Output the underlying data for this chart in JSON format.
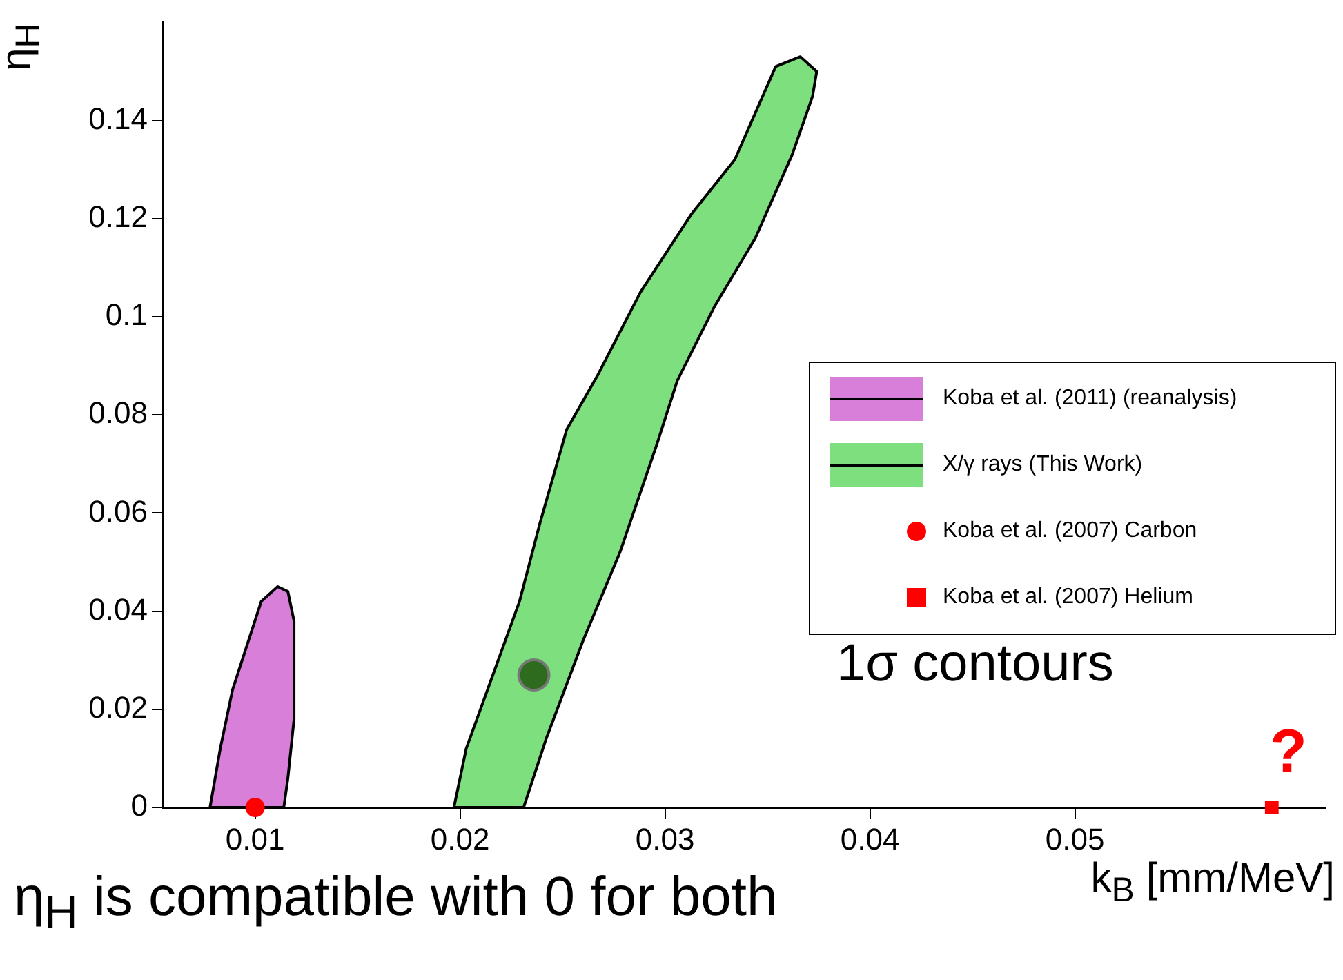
{
  "chart_data": {
    "type": "scatter",
    "xlabel": "k$_{B}$ [mm/MeV]",
    "ylabel": "η$_{H}$",
    "xlim": [
      0.0055,
      0.0622
    ],
    "ylim": [
      0,
      0.16
    ],
    "xticks": [
      0.01,
      0.02,
      0.03,
      0.04,
      0.05
    ],
    "yticks": [
      0,
      0.02,
      0.04,
      0.06,
      0.08,
      0.1,
      0.12,
      0.14
    ],
    "grid": false,
    "legend": "right",
    "annotations": [
      "1σ contours",
      "η$_{H}$ is compatible with 0 for both",
      {
        "text": "?",
        "x": 0.0596,
        "y": 0
      }
    ],
    "series": [
      {
        "name": "Koba et al. (2011) (reanalysis)",
        "type": "area",
        "color": "#d77fd9",
        "x": [
          0.0078,
          0.0083,
          0.0089,
          0.0096,
          0.0103,
          0.0111,
          0.0116,
          0.0119,
          0.0119,
          0.0116,
          0.0114,
          0.0078
        ],
        "values": [
          0,
          0.012,
          0.024,
          0.033,
          0.042,
          0.045,
          0.044,
          0.038,
          0.018,
          0.006,
          0,
          0
        ]
      },
      {
        "name": "X/γ rays (This Work)",
        "type": "area",
        "color": "#7ddf7d",
        "x": [
          0.0197,
          0.0203,
          0.0216,
          0.0229,
          0.0239,
          0.0252,
          0.0267,
          0.0288,
          0.0313,
          0.0334,
          0.0354,
          0.0366,
          0.0374,
          0.0372,
          0.0362,
          0.0344,
          0.0324,
          0.0306,
          0.0296,
          0.0278,
          0.026,
          0.0242,
          0.0231,
          0.0197
        ],
        "values": [
          0,
          0.012,
          0.027,
          0.042,
          0.058,
          0.077,
          0.088,
          0.105,
          0.121,
          0.132,
          0.151,
          0.153,
          0.15,
          0.145,
          0.133,
          0.116,
          0.102,
          0.087,
          0.074,
          0.052,
          0.034,
          0.014,
          0,
          0
        ]
      },
      {
        "type": "scatter",
        "marker": "circle",
        "color": "#2e6b1e",
        "x": [
          0.0236
        ],
        "values": [
          0.027
        ]
      },
      {
        "name": "Koba et al. (2007) Carbon",
        "type": "scatter",
        "marker": "circle",
        "color": "#ff0000",
        "x": [
          0.01
        ],
        "values": [
          0
        ]
      },
      {
        "name": "Koba et al. (2007) Helium",
        "type": "scatter",
        "marker": "square",
        "color": "#ff0000",
        "x": [
          0.0596
        ],
        "values": [
          0
        ]
      }
    ]
  }
}
